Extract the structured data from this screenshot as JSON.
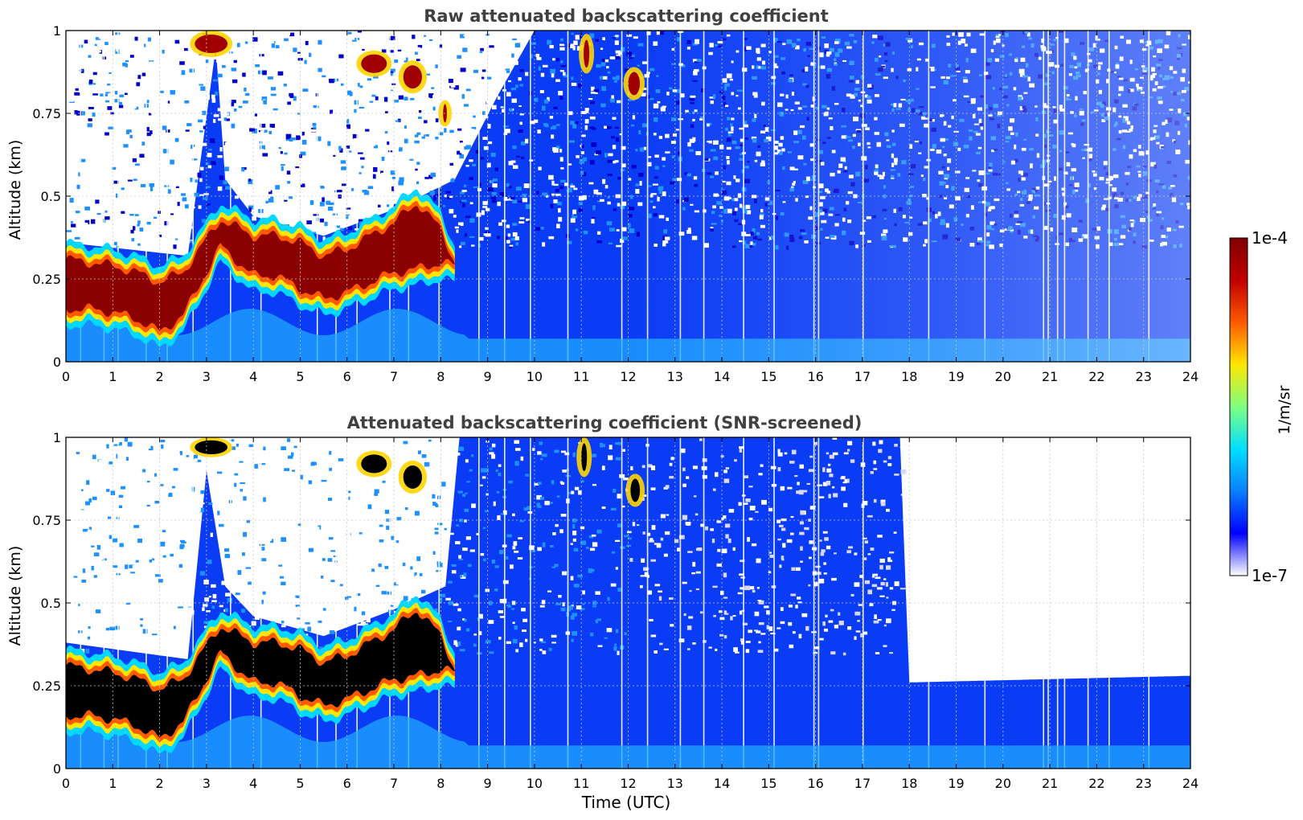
{
  "chart_data": [
    {
      "type": "heatmap",
      "title": "Raw attenuated backscattering coefficient",
      "xlabel": "",
      "ylabel": "Altitude (km)",
      "x_ticks": [
        "0",
        "1",
        "2",
        "3",
        "4",
        "5",
        "6",
        "7",
        "8",
        "9",
        "10",
        "11",
        "12",
        "13",
        "14",
        "15",
        "16",
        "17",
        "18",
        "19",
        "20",
        "21",
        "22",
        "23",
        "24"
      ],
      "y_ticks": [
        "0",
        "0.25",
        "0.5",
        "0.75",
        "1"
      ],
      "xlim": [
        0,
        24
      ],
      "ylim": [
        0,
        1
      ],
      "grid": true,
      "layer_traces": [
        {
          "name": "boundary-layer top",
          "x": [
            0,
            0.5,
            1,
            1.5,
            2,
            2.5,
            3.3,
            4,
            4.5,
            5,
            5.5,
            6,
            6.5,
            7,
            7.5,
            8,
            8.3
          ],
          "y": [
            0.31,
            0.3,
            0.29,
            0.27,
            0.24,
            0.27,
            0.43,
            0.38,
            0.38,
            0.36,
            0.32,
            0.34,
            0.38,
            0.42,
            0.48,
            0.4,
            0.3
          ]
        },
        {
          "name": "boundary-layer base",
          "x": [
            0,
            0.5,
            1,
            1.5,
            2,
            2.5,
            3.3,
            4,
            4.5,
            5,
            5.5,
            6,
            6.5,
            7,
            7.5,
            8,
            8.3
          ],
          "y": [
            0.16,
            0.16,
            0.15,
            0.13,
            0.09,
            0.14,
            0.35,
            0.26,
            0.26,
            0.22,
            0.19,
            0.21,
            0.24,
            0.27,
            0.28,
            0.3,
            0.29
          ]
        }
      ]
    },
    {
      "type": "heatmap",
      "title": "Attenuated backscattering coefficient (SNR-screened)",
      "xlabel": "Time (UTC)",
      "ylabel": "Altitude (km)",
      "x_ticks": [
        "0",
        "1",
        "2",
        "3",
        "4",
        "5",
        "6",
        "7",
        "8",
        "9",
        "10",
        "11",
        "12",
        "13",
        "14",
        "15",
        "16",
        "17",
        "18",
        "19",
        "20",
        "21",
        "22",
        "23",
        "24"
      ],
      "y_ticks": [
        "0",
        "0.25",
        "0.5",
        "0.75",
        "1"
      ],
      "xlim": [
        0,
        24
      ],
      "ylim": [
        0,
        1
      ],
      "grid": true,
      "screened_top": {
        "x": [
          0,
          17.8,
          18,
          24
        ],
        "y": [
          1.0,
          1.0,
          0.26,
          0.28
        ]
      }
    }
  ],
  "colorbar": {
    "label": "1/m/sr",
    "max_label": "1e-4",
    "min_label": "1e-7",
    "scale": "log",
    "colormap": [
      "#ffffff",
      "#0000ff",
      "#0a7fff",
      "#00dfff",
      "#80ff80",
      "#ffe600",
      "#ff5a00",
      "#c00000",
      "#800000"
    ]
  }
}
